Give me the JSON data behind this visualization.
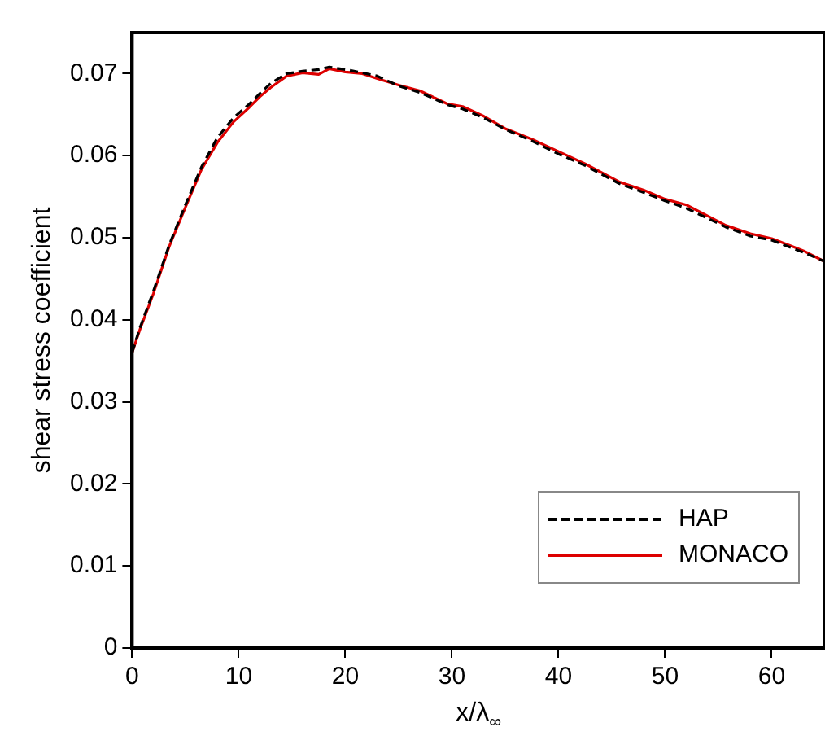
{
  "chart_data": {
    "type": "line",
    "xlabel": "x/λ$_{∞}$",
    "ylabel": "shear stress coefficient",
    "xlim": [
      0,
      65
    ],
    "ylim": [
      0,
      0.075
    ],
    "xticks": [
      0,
      10,
      20,
      30,
      40,
      50,
      60
    ],
    "yticks": [
      0,
      0.01,
      0.02,
      0.03,
      0.04,
      0.05,
      0.06,
      0.07
    ],
    "grid": false,
    "legend": "bottom right",
    "marker": "none",
    "series": [
      {
        "name": "HAP",
        "color": "#000000",
        "line_style": "dashed",
        "x": [
          0,
          0.7,
          2,
          3.5,
          5,
          6.5,
          8,
          9.5,
          11,
          12,
          13,
          14.5,
          16,
          17.5,
          18.5,
          20,
          21.6,
          23,
          25,
          27,
          29.6,
          31,
          33,
          35,
          37.5,
          40,
          42.5,
          45.7,
          48,
          50,
          52,
          55.7,
          58,
          60,
          61.8,
          63,
          64.8
        ],
        "values": [
          0.036,
          0.0389,
          0.0435,
          0.0492,
          0.054,
          0.0586,
          0.0622,
          0.0646,
          0.0663,
          0.0676,
          0.0688,
          0.07,
          0.0703,
          0.0705,
          0.0708,
          0.0705,
          0.0701,
          0.0697,
          0.0685,
          0.0677,
          0.0662,
          0.0657,
          0.0646,
          0.0632,
          0.0618,
          0.0602,
          0.0588,
          0.0566,
          0.0555,
          0.0545,
          0.0536,
          0.0513,
          0.0502,
          0.0497,
          0.0488,
          0.0482,
          0.0472
        ]
      },
      {
        "name": "MONACO",
        "color": "#dd0000",
        "line_style": "solid",
        "x": [
          0,
          0.7,
          2,
          3.5,
          5,
          6.5,
          8,
          9.5,
          11,
          12,
          13,
          14.5,
          16,
          17.5,
          18.5,
          20,
          21.6,
          23,
          25,
          27,
          29.6,
          31,
          33,
          35,
          37.5,
          40,
          42.5,
          45.7,
          48,
          50,
          52,
          55.7,
          58,
          60,
          61.8,
          63,
          64.8
        ],
        "values": [
          0.036,
          0.0387,
          0.0432,
          0.049,
          0.0537,
          0.0583,
          0.0616,
          0.0641,
          0.0659,
          0.0672,
          0.0683,
          0.0697,
          0.0701,
          0.0699,
          0.0706,
          0.0702,
          0.07,
          0.0694,
          0.0686,
          0.0679,
          0.0663,
          0.066,
          0.0648,
          0.0633,
          0.062,
          0.0605,
          0.059,
          0.0568,
          0.0558,
          0.0547,
          0.054,
          0.0515,
          0.0505,
          0.0499,
          0.049,
          0.0484,
          0.0472
        ]
      }
    ]
  }
}
